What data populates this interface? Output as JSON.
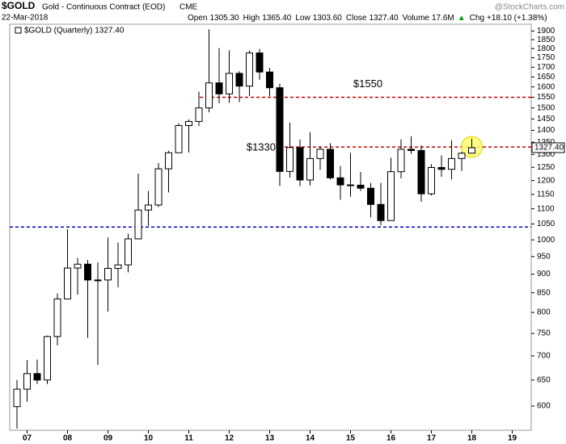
{
  "chart_data": {
    "type": "candlestick",
    "title": "$GOLD",
    "subtitle": "Gold - Continuous Contract (EOD)",
    "exchange": "CME",
    "date": "22-Mar-2018",
    "watermark": "@StockCharts.com",
    "stats": [
      {
        "label": "Open",
        "value": "1305.30"
      },
      {
        "label": "High",
        "value": "1365.40"
      },
      {
        "label": "Low",
        "value": "1303.60"
      },
      {
        "label": "Close",
        "value": "1327.40"
      },
      {
        "label": "Volume",
        "value": "17.6M"
      },
      {
        "label": "Chg",
        "value": "+18.10 (+1.38%)"
      }
    ],
    "legend": "$GOLD (Quarterly) 1327.40",
    "categories": [
      null,
      "07",
      null,
      null,
      null,
      "08",
      null,
      null,
      null,
      "09",
      null,
      null,
      null,
      "10",
      null,
      null,
      null,
      "11",
      null,
      null,
      null,
      "12",
      null,
      null,
      null,
      "13",
      null,
      null,
      null,
      "14",
      null,
      null,
      null,
      "15",
      null,
      null,
      null,
      "16",
      null,
      null,
      null,
      "17",
      null,
      null,
      null,
      "18",
      null,
      null,
      null,
      "19"
    ],
    "open": [
      599,
      632,
      663,
      650,
      743,
      834,
      917,
      928,
      884,
      884,
      916,
      926,
      1003,
      1096,
      1113,
      1244,
      1307,
      1421,
      1439,
      1500,
      1620,
      1566,
      1668,
      1604,
      1776,
      1675,
      1596,
      1234,
      1328,
      1202,
      1284,
      1321,
      1210,
      1184,
      1183,
      1172,
      1115,
      1061,
      1233,
      1321,
      1316,
      1152,
      1249,
      1242,
      1284,
      1305.3,
      null,
      null,
      null,
      null
    ],
    "high": [
      650,
      691,
      692,
      745,
      848,
      1033,
      946,
      940,
      933,
      1007,
      992,
      1019,
      1226,
      1162,
      1266,
      1315,
      1431,
      1448,
      1577,
      1910,
      1803,
      1791,
      1679,
      1790,
      1798,
      1697,
      1616,
      1434,
      1361,
      1392,
      1332,
      1346,
      1255,
      1307,
      1232,
      1191,
      1191,
      1287,
      1362,
      1375,
      1337,
      1262,
      1296,
      1358,
      1310,
      1365.4,
      null,
      null,
      null,
      null
    ],
    "low": [
      560,
      608,
      642,
      642,
      723,
      834,
      845,
      740,
      681,
      802,
      864,
      905,
      1003,
      1044,
      1106,
      1157,
      1307,
      1308,
      1419,
      1480,
      1522,
      1523,
      1527,
      1556,
      1636,
      1555,
      1180,
      1211,
      1179,
      1182,
      1240,
      1204,
      1131,
      1142,
      1162,
      1072,
      1046,
      1061,
      1208,
      1302,
      1124,
      1146,
      1214,
      1204,
      1236,
      1303.6,
      null,
      null,
      null,
      null
    ],
    "close": [
      632,
      663,
      650,
      743,
      834,
      917,
      928,
      884,
      884,
      916,
      926,
      1003,
      1096,
      1113,
      1244,
      1307,
      1421,
      1439,
      1500,
      1620,
      1566,
      1668,
      1604,
      1776,
      1675,
      1596,
      1234,
      1328,
      1202,
      1284,
      1321,
      1210,
      1184,
      1183,
      1172,
      1115,
      1061,
      1233,
      1321,
      1316,
      1152,
      1249,
      1242,
      1284,
      1305,
      1327.4,
      null,
      null,
      null,
      null
    ],
    "ylim": [
      557,
      1940
    ],
    "log_scale": true,
    "yticks": [
      600,
      650,
      700,
      750,
      800,
      850,
      900,
      950,
      1000,
      1050,
      1100,
      1150,
      1200,
      1250,
      1300,
      1350,
      1400,
      1450,
      1500,
      1550,
      1600,
      1650,
      1700,
      1750,
      1800,
      1850,
      1900
    ],
    "hlines": [
      {
        "value": 1550,
        "color": "#cc0000",
        "label": "$1550"
      },
      {
        "value": 1330,
        "color": "#cc0000",
        "label": "$1330"
      },
      {
        "value": 1040,
        "color": "#0000cc"
      }
    ],
    "last_price": {
      "value": 1327.4,
      "label": "1327.40"
    },
    "up_color": "#ffffff",
    "down_color": "#000000"
  }
}
